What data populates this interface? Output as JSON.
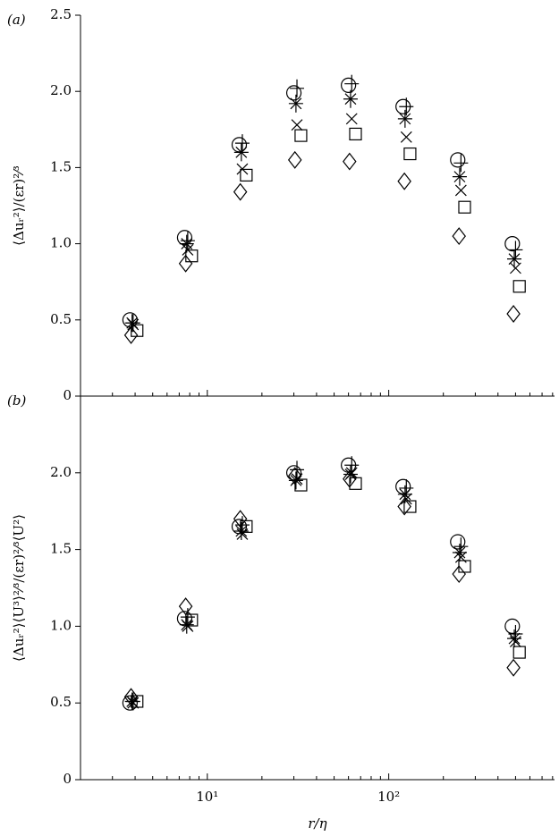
{
  "chart_data": [
    {
      "type": "scatter",
      "panel_label": "(a)",
      "y_label": "⟨Δuᵣ²⟩/(εr)²⁄³",
      "x_scale": "log",
      "xlim": [
        2,
        820
      ],
      "xticks": [
        10,
        100
      ],
      "xminor_ticks": [
        2,
        3,
        4,
        5,
        6,
        7,
        8,
        9,
        20,
        30,
        40,
        50,
        60,
        70,
        80,
        90,
        200,
        300,
        400,
        500,
        600,
        700,
        800
      ],
      "ylim": [
        0,
        2.5
      ],
      "yticks": [
        0,
        0.5,
        {
          "value": 1,
          "label": "1.0"
        },
        1.5,
        {
          "value": 2,
          "label": "2.0"
        },
        2.5
      ],
      "series": [
        {
          "marker": "circle",
          "color": "#000",
          "x": [
            3.75,
            7.5,
            15,
            30,
            60,
            120,
            240,
            480
          ],
          "values": [
            0.5,
            1.04,
            1.65,
            1.99,
            2.04,
            1.9,
            1.55,
            1.0
          ]
        },
        {
          "marker": "plus",
          "color": "#000",
          "x": [
            3.9,
            7.8,
            15.6,
            31.2,
            62.5,
            125,
            250,
            500
          ],
          "values": [
            0.48,
            1.02,
            1.66,
            2.02,
            2.05,
            1.9,
            1.53,
            0.96
          ]
        },
        {
          "marker": "star",
          "color": "#000",
          "x": [
            3.85,
            7.7,
            15.4,
            30.8,
            61.6,
            123,
            246,
            492
          ],
          "values": [
            0.48,
            1.0,
            1.6,
            1.92,
            1.95,
            1.82,
            1.44,
            0.9
          ]
        },
        {
          "marker": "cross",
          "color": "#000",
          "x": [
            3.9,
            7.8,
            15.6,
            31.2,
            62.5,
            125,
            250,
            500
          ],
          "values": [
            0.47,
            0.96,
            1.49,
            1.78,
            1.82,
            1.7,
            1.35,
            0.84
          ]
        },
        {
          "marker": "square",
          "color": "#000",
          "x": [
            4.1,
            8.2,
            16.4,
            32.8,
            65.6,
            131,
            262,
            525
          ],
          "values": [
            0.43,
            0.92,
            1.45,
            1.71,
            1.72,
            1.59,
            1.24,
            0.72
          ]
        },
        {
          "marker": "diamond",
          "color": "#000",
          "x": [
            3.8,
            7.6,
            15.2,
            30.4,
            60.8,
            122,
            244,
            487
          ],
          "values": [
            0.4,
            0.87,
            1.34,
            1.55,
            1.54,
            1.41,
            1.05,
            0.54
          ]
        }
      ]
    },
    {
      "type": "scatter",
      "panel_label": "(b)",
      "y_label": "⟨Δuᵣ²⟩⟨U³⟩²⁄³/(εr)²⁄³⟨U²⟩",
      "x_label": "r/η",
      "x_scale": "log",
      "xlim": [
        2,
        820
      ],
      "xticks": [
        {
          "value": 10,
          "label": "10¹"
        },
        {
          "value": 100,
          "label": "10²"
        }
      ],
      "xminor_ticks": [
        2,
        3,
        4,
        5,
        6,
        7,
        8,
        9,
        20,
        30,
        40,
        50,
        60,
        70,
        80,
        90,
        200,
        300,
        400,
        500,
        600,
        700,
        800
      ],
      "ylim": [
        0,
        2.5
      ],
      "yticks": [
        0,
        0.5,
        {
          "value": 1,
          "label": "1.0"
        },
        1.5,
        {
          "value": 2,
          "label": "2.0"
        }
      ],
      "series": [
        {
          "marker": "circle",
          "color": "#000",
          "x": [
            3.75,
            7.5,
            15,
            30,
            60,
            120,
            240,
            480
          ],
          "values": [
            0.5,
            1.05,
            1.65,
            2.0,
            2.05,
            1.91,
            1.55,
            1.0
          ]
        },
        {
          "marker": "plus",
          "color": "#000",
          "x": [
            3.9,
            7.8,
            15.6,
            31.2,
            62.5,
            125,
            250,
            500
          ],
          "values": [
            0.51,
            1.06,
            1.66,
            2.02,
            2.05,
            1.9,
            1.52,
            0.95
          ]
        },
        {
          "marker": "star",
          "color": "#000",
          "x": [
            3.85,
            7.7,
            15.4,
            30.8,
            61.6,
            123,
            246,
            492
          ],
          "values": [
            0.51,
            1.01,
            1.62,
            1.95,
            1.99,
            1.86,
            1.48,
            0.92
          ]
        },
        {
          "marker": "cross",
          "color": "#000",
          "x": [
            3.9,
            7.8,
            15.6,
            31.2,
            62.5,
            125,
            250,
            500
          ],
          "values": [
            0.5,
            1.0,
            1.6,
            1.96,
            2.0,
            1.83,
            1.45,
            0.9
          ]
        },
        {
          "marker": "square",
          "color": "#000",
          "x": [
            4.1,
            8.2,
            16.4,
            32.8,
            65.6,
            131,
            262,
            525
          ],
          "values": [
            0.51,
            1.04,
            1.65,
            1.92,
            1.93,
            1.78,
            1.39,
            0.83
          ]
        },
        {
          "marker": "diamond",
          "color": "#000",
          "x": [
            3.8,
            7.6,
            15.2,
            30.4,
            60.8,
            122,
            244,
            487
          ],
          "values": [
            0.54,
            1.13,
            1.7,
            1.98,
            1.96,
            1.78,
            1.34,
            0.73
          ]
        }
      ]
    }
  ]
}
